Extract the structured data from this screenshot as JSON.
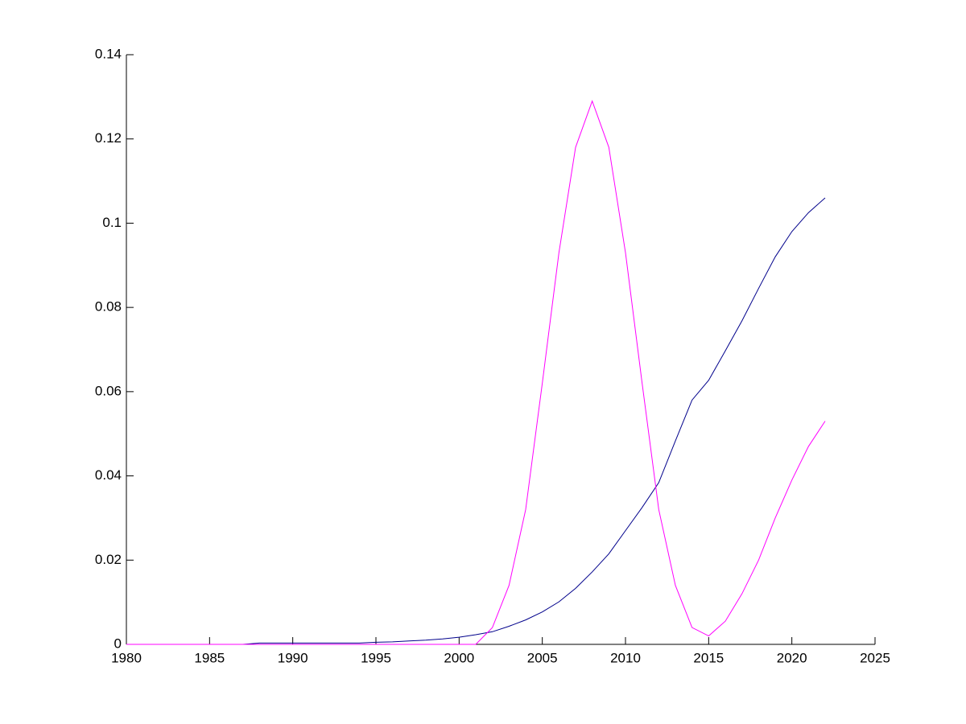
{
  "chart_data": {
    "type": "line",
    "x": [
      1980,
      1981,
      1982,
      1983,
      1984,
      1985,
      1986,
      1987,
      1988,
      1989,
      1990,
      1991,
      1992,
      1993,
      1994,
      1995,
      1996,
      1997,
      1998,
      1999,
      2000,
      2001,
      2002,
      2003,
      2004,
      2005,
      2006,
      2007,
      2008,
      2009,
      2010,
      2011,
      2012,
      2013,
      2014,
      2015,
      2016,
      2017,
      2018,
      2019,
      2020,
      2021,
      2022
    ],
    "series": [
      {
        "color": "#00008b",
        "values": [
          0,
          0,
          0,
          0,
          0,
          0,
          0,
          0,
          0.0003,
          0.0003,
          0.0003,
          0.0003,
          0.0003,
          0.0003,
          0.0003,
          0.0005,
          0.0006,
          0.0008,
          0.001,
          0.0013,
          0.0017,
          0.0023,
          0.003,
          0.0043,
          0.0058,
          0.0077,
          0.0101,
          0.0133,
          0.0172,
          0.0215,
          0.027,
          0.0325,
          0.0384,
          0.0483,
          0.058,
          0.0627,
          0.0697,
          0.0768,
          0.0845,
          0.092,
          0.098,
          0.1025,
          0.106
        ]
      },
      {
        "color": "#ff00ff",
        "values": [
          0,
          0,
          0,
          0,
          0,
          0,
          0,
          0,
          0,
          0,
          0,
          0,
          0,
          0,
          0,
          0,
          0,
          0,
          0,
          0,
          0,
          0,
          0.004,
          0.014,
          0.032,
          0.062,
          0.093,
          0.118,
          0.129,
          0.118,
          0.093,
          0.062,
          0.032,
          0.014,
          0.004,
          0.002,
          0.0055,
          0.012,
          0.02,
          0.03,
          0.039,
          0.047,
          0.053
        ]
      }
    ],
    "xlim": [
      1980,
      2025
    ],
    "xticks": [
      1980,
      1985,
      1990,
      1995,
      2000,
      2005,
      2010,
      2015,
      2020,
      2025
    ],
    "ylim": [
      0,
      0.14
    ],
    "yticks": [
      0,
      0.02,
      0.04,
      0.06,
      0.08,
      0.1,
      0.12,
      0.14
    ]
  }
}
